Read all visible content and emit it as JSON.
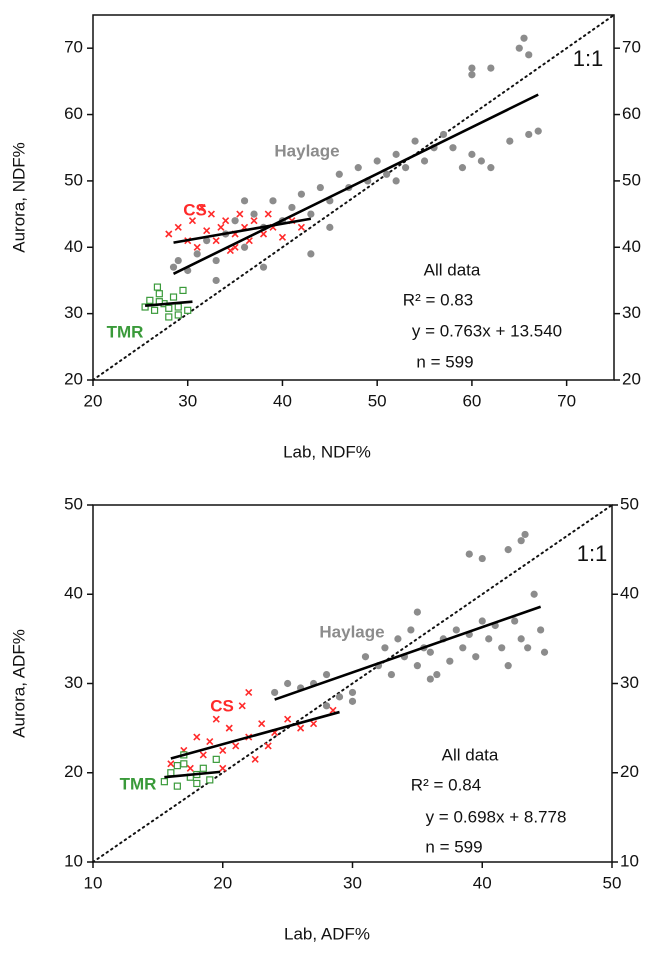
{
  "chart_data": [
    {
      "type": "scatter",
      "xlabel": "Lab, NDF%",
      "ylabel": "Aurora, NDF%",
      "xlim": [
        20,
        75
      ],
      "ylim": [
        20,
        75
      ],
      "xticks": [
        20,
        30,
        40,
        50,
        60,
        70
      ],
      "yticks": [
        20,
        30,
        40,
        50,
        60,
        70
      ],
      "identity_label": "1:1",
      "annotations": [
        "All data",
        "R² = 0.83",
        "y = 0.763x + 13.540",
        "n = 599"
      ],
      "series": [
        {
          "name": "Haylage",
          "color": "#8c8c8c",
          "marker": "circle",
          "x": [
            28.5,
            29,
            30,
            31,
            32,
            33,
            34,
            35,
            36,
            37,
            38,
            39,
            40,
            41,
            42,
            43,
            44,
            45,
            46,
            47,
            48,
            49,
            50,
            51,
            52,
            53,
            54,
            55,
            56,
            57,
            58,
            59,
            60,
            61,
            62,
            60,
            60,
            62,
            65,
            65.5,
            66,
            66,
            67,
            64,
            43,
            38,
            33,
            36,
            45,
            52
          ],
          "y": [
            37,
            38,
            36.5,
            39,
            41,
            38,
            42,
            44,
            40,
            45,
            43,
            47,
            44,
            46,
            48,
            45,
            49,
            47,
            51,
            49,
            52,
            50,
            53,
            51,
            54,
            52,
            56,
            53,
            55,
            57,
            55,
            52,
            54,
            53,
            52,
            66,
            67,
            67,
            70,
            71.5,
            69,
            57,
            57.5,
            56,
            39,
            37,
            35,
            47,
            43,
            50
          ]
        },
        {
          "name": "CS",
          "color": "#ff2a2a",
          "marker": "x",
          "x": [
            28,
            29,
            30,
            30.5,
            31,
            32,
            32.5,
            33,
            33.5,
            34,
            34.5,
            35,
            35.5,
            36,
            36.5,
            37,
            38,
            38.5,
            39,
            40,
            41,
            42,
            31.5,
            35
          ],
          "y": [
            42,
            43,
            41,
            44,
            40,
            42.5,
            45,
            41,
            43,
            44,
            39.5,
            42,
            45,
            43,
            41,
            44,
            42,
            45,
            43,
            41.5,
            44,
            43,
            46,
            40
          ]
        },
        {
          "name": "TMR",
          "color": "#3a9a3a",
          "marker": "square",
          "x": [
            25.5,
            26,
            26.5,
            27,
            27.5,
            28,
            28.5,
            29,
            29.5,
            30,
            26.8,
            28,
            29,
            27
          ],
          "y": [
            31,
            32,
            30.5,
            33,
            31.5,
            29.5,
            32.5,
            31,
            33.5,
            30.5,
            34,
            30.8,
            29.8,
            31.8
          ]
        }
      ],
      "fit_lines": [
        {
          "x": [
            28.5,
            67
          ],
          "y": [
            36,
            63
          ]
        },
        {
          "x": [
            28.5,
            43
          ],
          "y": [
            40.7,
            44.3
          ]
        },
        {
          "x": [
            25.5,
            30.5
          ],
          "y": [
            31.2,
            31.8
          ]
        }
      ]
    },
    {
      "type": "scatter",
      "xlabel": "Lab, ADF%",
      "ylabel": "Aurora, ADF%",
      "xlim": [
        10,
        50
      ],
      "ylim": [
        10,
        50
      ],
      "xticks": [
        10,
        20,
        30,
        40,
        50
      ],
      "yticks": [
        10,
        20,
        30,
        40,
        50
      ],
      "identity_label": "1:1",
      "annotations": [
        "All data",
        "R² = 0.84",
        "y = 0.698x + 8.778",
        "n = 599"
      ],
      "series": [
        {
          "name": "Haylage",
          "color": "#8c8c8c",
          "marker": "circle",
          "x": [
            24,
            25,
            26,
            27,
            28,
            29,
            30,
            31,
            32,
            32.5,
            33,
            33.5,
            34,
            34.5,
            35,
            35.5,
            36,
            36.5,
            37,
            37.5,
            38,
            38.5,
            39,
            39.5,
            40,
            40.5,
            41,
            41.5,
            42,
            42.5,
            43,
            43.5,
            44,
            44.5,
            44.8,
            39,
            40,
            42,
            43,
            43.3,
            28,
            30,
            35,
            36
          ],
          "y": [
            29,
            30,
            29.5,
            30,
            31,
            28.5,
            29,
            33,
            32,
            34,
            31,
            35,
            33,
            36,
            32,
            34,
            33.5,
            31,
            35,
            32.5,
            36,
            34,
            35.5,
            33,
            37,
            35,
            36.5,
            34,
            32,
            37,
            35,
            34,
            40,
            36,
            33.5,
            44.5,
            44,
            45,
            46,
            46.7,
            27.5,
            28,
            38,
            30.5
          ]
        },
        {
          "name": "CS",
          "color": "#ff2a2a",
          "marker": "x",
          "x": [
            16,
            17,
            17.5,
            18,
            18.5,
            19,
            19.5,
            20,
            20.5,
            21,
            21.5,
            22,
            22.5,
            23,
            23.5,
            24,
            25,
            26,
            27,
            28.5,
            20,
            22
          ],
          "y": [
            21,
            22.5,
            20.5,
            24,
            22,
            23.5,
            26,
            22.5,
            25,
            23,
            27.5,
            24,
            21.5,
            25.5,
            23,
            24.5,
            26,
            25,
            25.5,
            27,
            20.5,
            29
          ]
        },
        {
          "name": "TMR",
          "color": "#3a9a3a",
          "marker": "square",
          "x": [
            15.5,
            16,
            16.5,
            17,
            17.5,
            18,
            18.5,
            19,
            19.5,
            17,
            18,
            16.5
          ],
          "y": [
            19,
            20,
            18.5,
            21,
            19.5,
            18.8,
            20.5,
            19.2,
            21.5,
            22,
            19.8,
            20.8
          ]
        }
      ],
      "fit_lines": [
        {
          "x": [
            24,
            44.5
          ],
          "y": [
            28.2,
            38.6
          ]
        },
        {
          "x": [
            16,
            29
          ],
          "y": [
            21.6,
            26.8
          ]
        },
        {
          "x": [
            15.5,
            19.8
          ],
          "y": [
            19.5,
            20.1
          ]
        }
      ]
    }
  ]
}
